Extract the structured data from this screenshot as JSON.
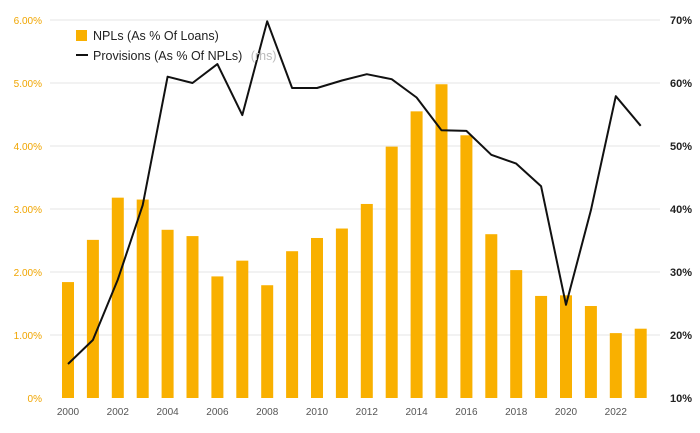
{
  "chart_data": {
    "type": "bar+line",
    "title": "",
    "colors": {
      "bars": "#f9b000",
      "line": "#111111",
      "left_ticks": "#f0a500",
      "grid": "#e6e6e6"
    },
    "years": [
      2000,
      2001,
      2002,
      2003,
      2004,
      2005,
      2006,
      2007,
      2008,
      2009,
      2010,
      2011,
      2012,
      2013,
      2014,
      2015,
      2016,
      2017,
      2018,
      2019,
      2020,
      2021,
      2022,
      2023
    ],
    "x_tick_labels": [
      "2000",
      "2002",
      "2004",
      "2006",
      "2008",
      "2010",
      "2012",
      "2014",
      "2016",
      "2018",
      "2020",
      "2022"
    ],
    "left_axis": {
      "min": 0,
      "max": 6,
      "ticks": [
        "0%",
        "1.00%",
        "2.00%",
        "3.00%",
        "4.00%",
        "5.00%",
        "6.00%"
      ]
    },
    "right_axis": {
      "min": 10,
      "max": 70,
      "ticks": [
        "10%",
        "20%",
        "30%",
        "40%",
        "50%",
        "60%",
        "70%"
      ]
    },
    "series": [
      {
        "name": "NPLs (As % Of Loans)",
        "kind": "bar",
        "axis": "left",
        "values": [
          1.84,
          2.51,
          3.18,
          3.15,
          2.67,
          2.57,
          1.93,
          2.18,
          1.79,
          2.33,
          2.54,
          2.69,
          3.08,
          3.99,
          4.55,
          4.98,
          4.17,
          2.6,
          2.03,
          1.62,
          1.63,
          1.46,
          1.03,
          1.1
        ]
      },
      {
        "name": "Provisions (As % Of NPLs)",
        "kind": "line",
        "axis": "right",
        "values": [
          15.4,
          19.2,
          28.8,
          40.6,
          61.0,
          60.0,
          63.0,
          54.9,
          69.8,
          59.2,
          59.2,
          60.4,
          61.4,
          60.6,
          57.7,
          52.5,
          52.4,
          48.6,
          47.2,
          43.6,
          24.8,
          39.8,
          57.9,
          53.2
        ]
      }
    ],
    "legend": {
      "bar_label": "NPLs (As % Of Loans)",
      "line_label": "Provisions (As % Of NPLs)",
      "line_suffix": "(rhs)"
    }
  }
}
